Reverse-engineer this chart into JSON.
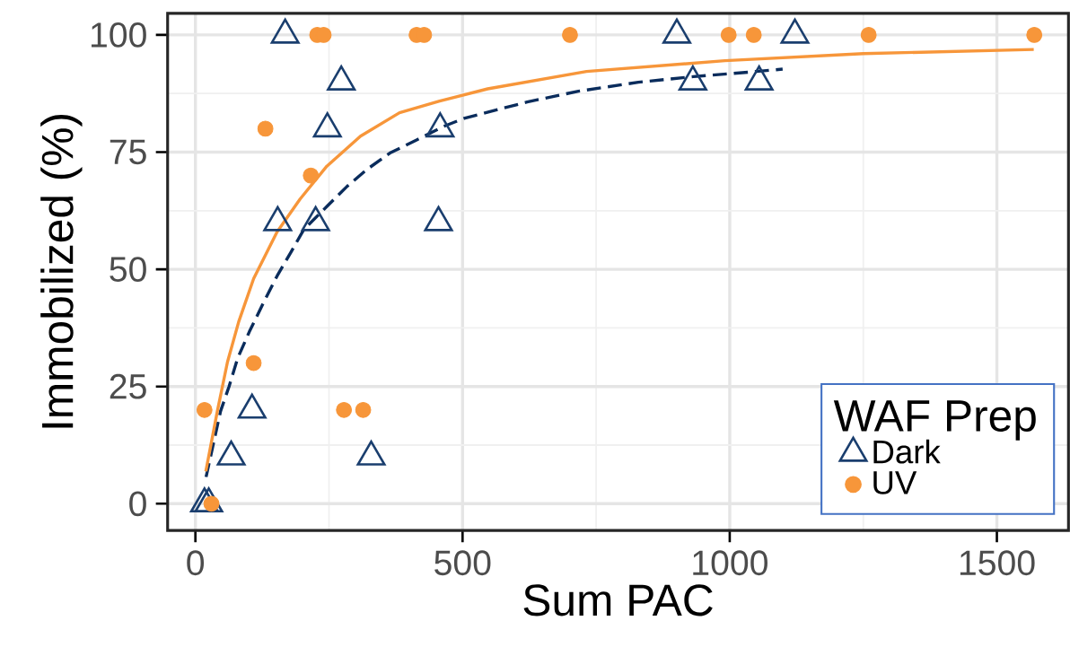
{
  "chart_data": {
    "type": "scatter",
    "xlabel": "Sum PAC",
    "ylabel": "Immobilized (%)",
    "legend_title": "WAF Prep",
    "xlim": [
      -52,
      1634
    ],
    "ylim": [
      -5.7,
      104.6
    ],
    "xticks": [
      0,
      500,
      1000,
      1500
    ],
    "yticks": [
      0,
      25,
      50,
      75,
      100
    ],
    "grid": true,
    "legend": "bottom right",
    "series": [
      {
        "type": "line",
        "color": "#0a2c5c",
        "line_style": "dashed",
        "marker": "none",
        "x": [
          20,
          47,
          63,
          79,
          101,
          128,
          153,
          178,
          203,
          247,
          284,
          321,
          364,
          414,
          465,
          503,
          621,
          717,
          829,
          932,
          1050,
          1099
        ],
        "values": [
          5.7,
          19.7,
          25,
          31,
          36.7,
          43,
          48.6,
          53.5,
          58.5,
          63.5,
          67.7,
          71.3,
          74.8,
          77.6,
          80.5,
          82.2,
          85.7,
          88,
          89.9,
          91.1,
          92.2,
          92.7
        ]
      },
      {
        "type": "line",
        "color": "#f7963a",
        "line_style": "solid",
        "marker": "none",
        "x": [
          19.5,
          41,
          60,
          81,
          109,
          153,
          196,
          246,
          309,
          382,
          457,
          547,
          732,
          991,
          1250,
          1569
        ],
        "values": [
          6.9,
          19.7,
          30.2,
          38.8,
          48,
          58,
          65,
          72,
          78.4,
          83.4,
          85.9,
          88.5,
          92.2,
          94.5,
          96,
          96.9
        ]
      },
      {
        "name": "Dark",
        "color": "#1a3e6e",
        "marker": "triangle",
        "x": [
          17,
          25,
          67,
          106,
          154,
          168,
          225,
          247,
          273,
          329,
          455,
          458,
          901,
          931,
          1055,
          1122
        ],
        "values": [
          0,
          0,
          10,
          20,
          60,
          100,
          60,
          80,
          90,
          10,
          60,
          80,
          100,
          90,
          90,
          100
        ]
      },
      {
        "name": "UV",
        "color": "#f7963a",
        "marker": "circle",
        "x": [
          17,
          30,
          109,
          131,
          216,
          228,
          240,
          278,
          314,
          414,
          428,
          701,
          998,
          1045,
          1260,
          1570
        ],
        "values": [
          20,
          0,
          30,
          80,
          70,
          100,
          100,
          20,
          20,
          100,
          100,
          100,
          100,
          100,
          100,
          100
        ]
      }
    ]
  }
}
